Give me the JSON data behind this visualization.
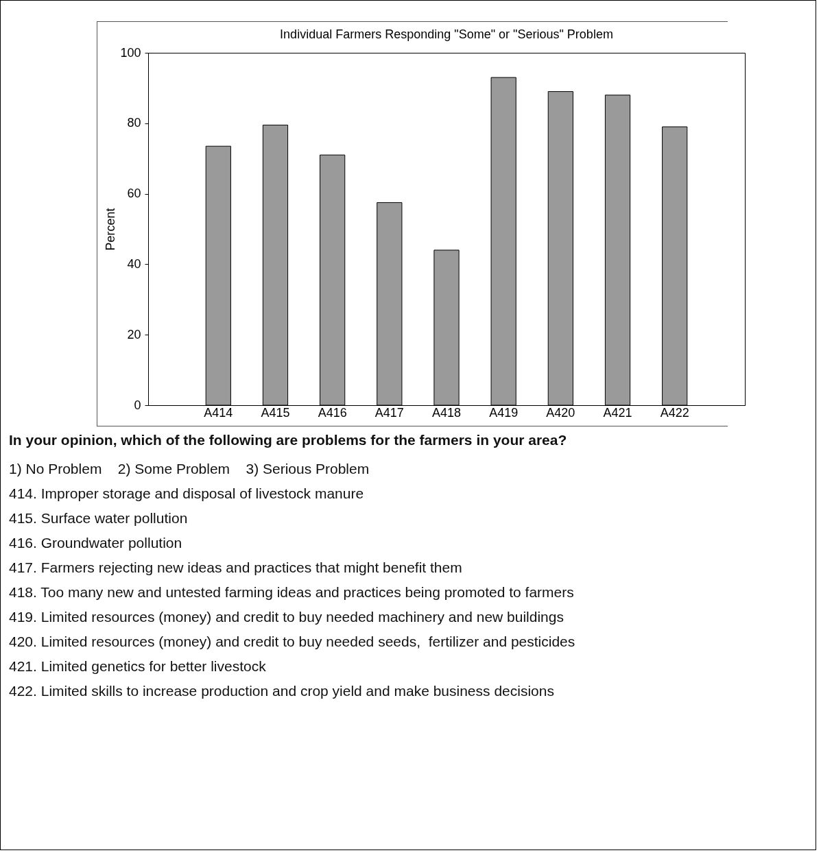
{
  "chart_data": {
    "type": "bar",
    "title": "Individual Farmers Responding \"Some\" or \"Serious\" Problem",
    "ylabel": "Percent",
    "categories": [
      "A414",
      "A415",
      "A416",
      "A417",
      "A418",
      "A419",
      "A420",
      "A421",
      "A422"
    ],
    "values": [
      73.5,
      79.5,
      71,
      57.5,
      44,
      93,
      89,
      88,
      79
    ],
    "color": "#9a9a9a",
    "ylim": [
      0,
      100
    ],
    "yticks": [
      0,
      20,
      40,
      60,
      80,
      100
    ],
    "grid": false,
    "annotations": [
      "In your opinion, which of the following are problems for the farmers in your area?",
      "1) No Problem    2) Some Problem    3) Serious Problem",
      "414. Improper storage and disposal of livestock manure",
      "415. Surface water pollution",
      "416. Groundwater pollution",
      "417. Farmers rejecting new ideas and practices that might benefit them",
      "418. Too many new and untested farming ideas and practices being promoted to farmers",
      "419. Limited resources (money) and credit to buy needed machinery and new buildings",
      "420. Limited resources (money) and credit to buy needed seeds,  fertilizer and pesticides",
      "421. Limited genetics for better livestock",
      "422. Limited skills to increase production and crop yield and make business decisions"
    ]
  }
}
